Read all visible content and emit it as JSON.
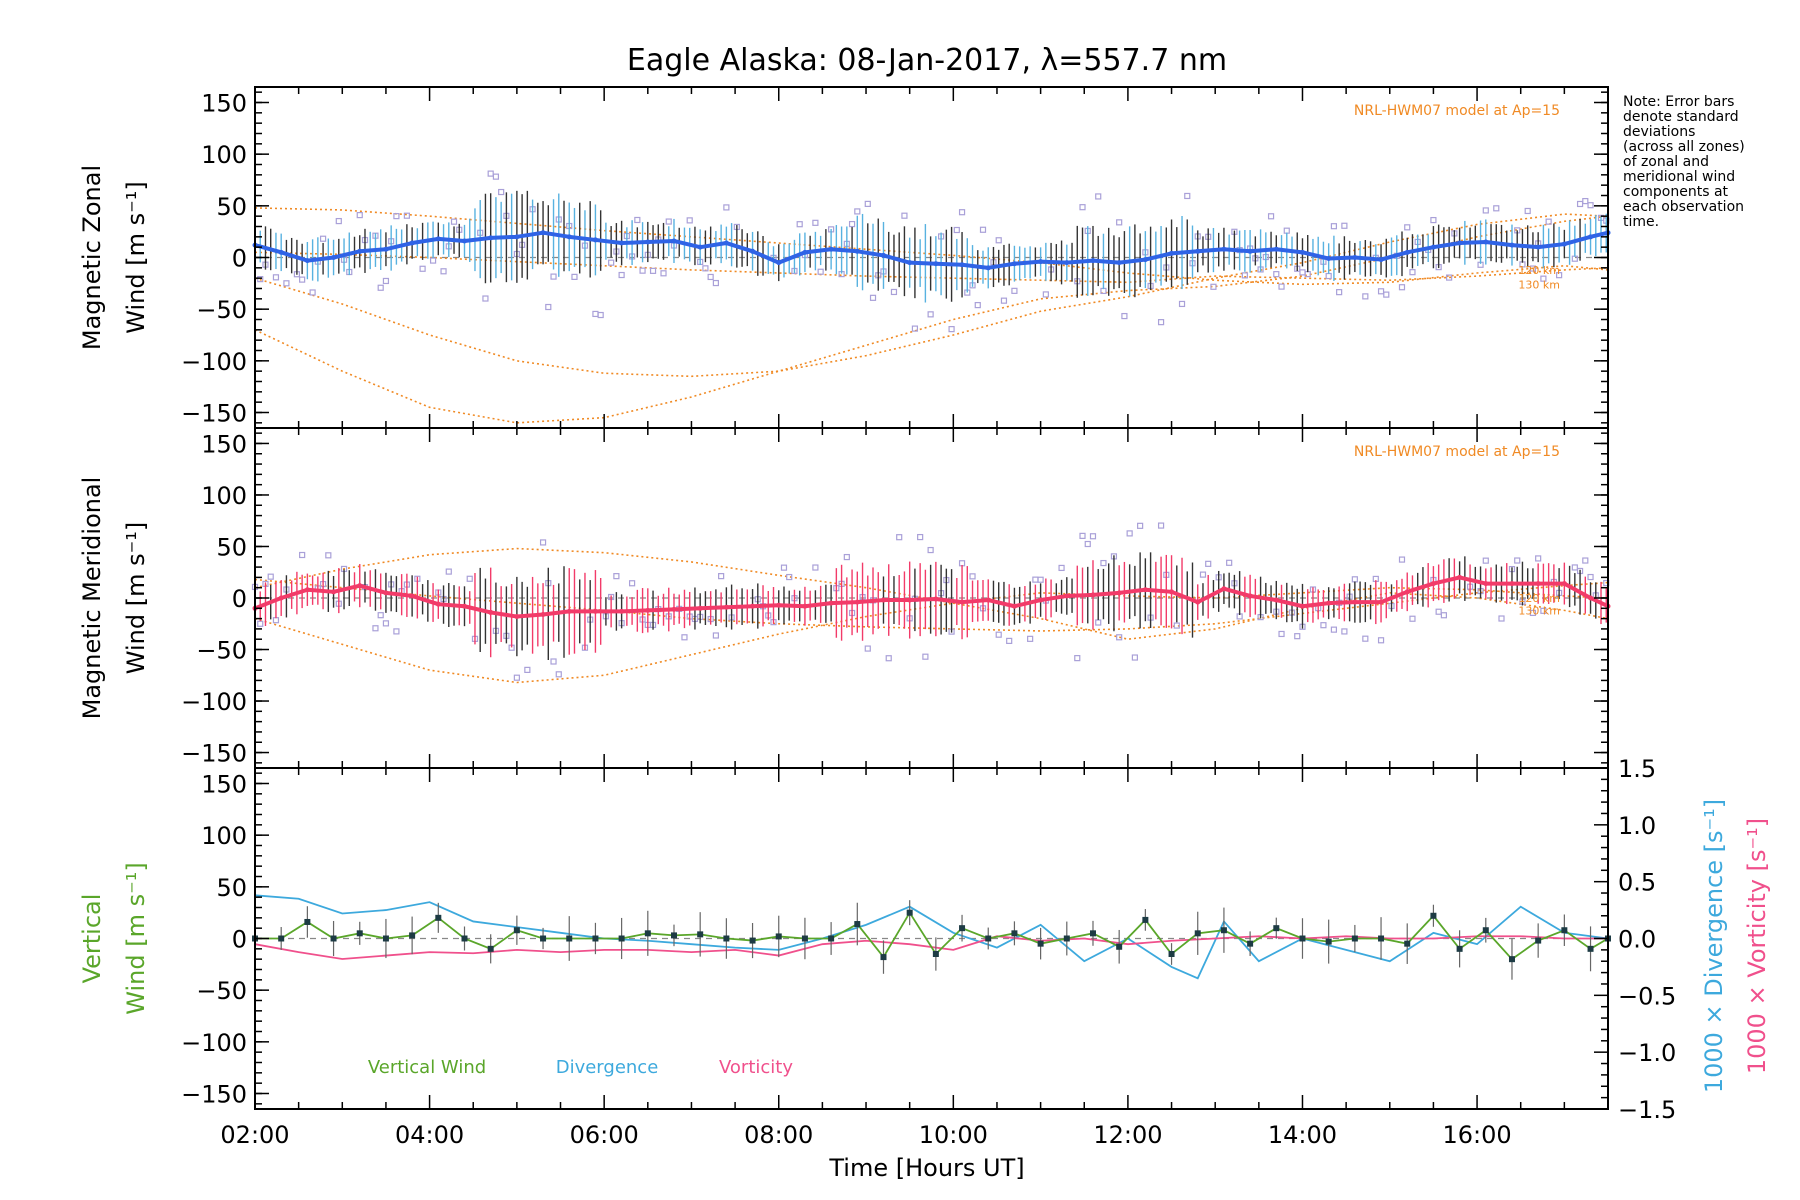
{
  "colors": {
    "zonal": "#2f63e6",
    "zonal_light": "#58b2e0",
    "meridional": "#f23b69",
    "vertical": "#5aa62a",
    "divergence": "#3da9dd",
    "vorticity": "#f0508c",
    "model": "#f08a24",
    "scatter": "#a9a0d8"
  },
  "chart_data": [
    {
      "type": "line",
      "panel": "zonal",
      "title": "Eagle Alaska: 08-Jan-2017, λ=557.7 nm",
      "ylabel_line1": "Magnetic Zonal",
      "ylabel_line2": "Wind [m s⁻¹]",
      "xlim": [
        2.0,
        17.5
      ],
      "ylim": [
        -165,
        165
      ],
      "yticks": [
        150,
        100,
        50,
        0,
        -50,
        -100,
        -150
      ],
      "model_label": "NRL-HWM07 model at Ap=15",
      "model_alt_labels": [
        "120 km",
        "130 km"
      ],
      "series": [
        {
          "x": [
            2.0,
            2.3,
            2.6,
            2.9,
            3.2,
            3.5,
            3.8,
            4.1,
            4.4,
            4.7,
            5.0,
            5.3,
            5.6,
            5.9,
            6.2,
            6.5,
            6.8,
            7.1,
            7.4,
            7.7,
            8.0,
            8.3,
            8.6,
            8.9,
            9.2,
            9.5,
            9.8,
            10.1,
            10.4,
            10.7,
            11.0,
            11.3,
            11.6,
            11.9,
            12.2,
            12.5,
            12.8,
            13.1,
            13.4,
            13.7,
            14.0,
            14.3,
            14.6,
            14.9,
            15.2,
            15.5,
            15.8,
            16.1,
            16.4,
            16.7,
            17.0,
            17.3,
            17.5
          ],
          "values": [
            12,
            5,
            -3,
            0,
            6,
            8,
            14,
            18,
            16,
            19,
            20,
            24,
            20,
            17,
            14,
            15,
            16,
            10,
            14,
            6,
            -5,
            5,
            8,
            6,
            2,
            -5,
            -6,
            -7,
            -10,
            -6,
            -4,
            -5,
            -3,
            -5,
            -2,
            4,
            6,
            8,
            6,
            8,
            5,
            -1,
            0,
            -2,
            5,
            10,
            14,
            15,
            12,
            10,
            13,
            20,
            24
          ]
        }
      ],
      "model_curves": [
        {
          "x": [
            2,
            3,
            4,
            5,
            6,
            7,
            8,
            9,
            10,
            11,
            12,
            13,
            14,
            15,
            16,
            17,
            17.5
          ],
          "values": [
            48,
            46,
            40,
            33,
            26,
            20,
            14,
            8,
            2,
            -5,
            -15,
            -22,
            -26,
            -24,
            -15,
            -8,
            -12
          ]
        },
        {
          "x": [
            2,
            3,
            4,
            5,
            6,
            7,
            8,
            9,
            10,
            11,
            12,
            13,
            14,
            15,
            16,
            17,
            17.5
          ],
          "values": [
            -20,
            -45,
            -75,
            -100,
            -112,
            -115,
            -110,
            -95,
            -75,
            -52,
            -38,
            -20,
            -5,
            15,
            32,
            42,
            40
          ]
        },
        {
          "x": [
            2,
            3,
            4,
            5,
            6,
            7,
            8,
            9,
            10,
            11,
            12,
            13,
            14,
            15,
            16,
            17,
            17.5
          ],
          "values": [
            -70,
            -110,
            -145,
            -160,
            -155,
            -135,
            -110,
            -85,
            -60,
            -40,
            -32,
            -28,
            -18,
            0,
            20,
            35,
            40
          ]
        },
        {
          "x": [
            2,
            3,
            4,
            5,
            6,
            7,
            8,
            9,
            10,
            11,
            12,
            13,
            14,
            15,
            16,
            17,
            17.5
          ],
          "values": [
            5,
            3,
            0,
            -4,
            -8,
            -12,
            -15,
            -18,
            -20,
            -22,
            -24,
            -18,
            -20,
            -22,
            -18,
            -12,
            -10
          ]
        }
      ]
    },
    {
      "type": "line",
      "panel": "meridional",
      "ylabel_line1": "Magnetic Meridional",
      "ylabel_line2": "Wind [m s⁻¹]",
      "xlim": [
        2.0,
        17.5
      ],
      "ylim": [
        -165,
        165
      ],
      "yticks": [
        150,
        100,
        50,
        0,
        -50,
        -100,
        -150
      ],
      "model_label": "NRL-HWM07 model at Ap=15",
      "model_alt_labels": [
        "120 km",
        "130 km"
      ],
      "series": [
        {
          "x": [
            2.0,
            2.3,
            2.6,
            2.9,
            3.2,
            3.5,
            3.8,
            4.1,
            4.4,
            4.7,
            5.0,
            5.3,
            5.6,
            5.9,
            6.2,
            6.5,
            6.8,
            7.1,
            7.4,
            7.7,
            8.0,
            8.3,
            8.6,
            8.9,
            9.2,
            9.5,
            9.8,
            10.1,
            10.4,
            10.7,
            11.0,
            11.3,
            11.6,
            11.9,
            12.2,
            12.5,
            12.8,
            13.1,
            13.4,
            13.7,
            14.0,
            14.3,
            14.6,
            14.9,
            15.2,
            15.5,
            15.8,
            16.1,
            16.4,
            16.7,
            17.0,
            17.3,
            17.5
          ],
          "values": [
            -10,
            0,
            8,
            6,
            12,
            5,
            2,
            -6,
            -8,
            -14,
            -18,
            -16,
            -13,
            -13,
            -13,
            -12,
            -11,
            -10,
            -9,
            -8,
            -7,
            -8,
            -5,
            -4,
            -2,
            -2,
            -1,
            -4,
            -2,
            -8,
            -2,
            2,
            3,
            5,
            8,
            6,
            -4,
            9,
            2,
            -2,
            -8,
            -5,
            -4,
            -4,
            6,
            14,
            20,
            14,
            14,
            14,
            14,
            0,
            -8
          ]
        }
      ],
      "model_curves": [
        {
          "x": [
            2,
            3,
            4,
            5,
            6,
            7,
            8,
            9,
            10,
            11,
            12,
            13,
            14,
            15,
            16,
            17,
            17.5
          ],
          "values": [
            10,
            28,
            42,
            48,
            44,
            35,
            22,
            10,
            -5,
            -20,
            -40,
            -30,
            -10,
            5,
            0,
            -12,
            -20
          ]
        },
        {
          "x": [
            2,
            3,
            4,
            5,
            6,
            7,
            8,
            9,
            10,
            11,
            12,
            13,
            14,
            15,
            16,
            17,
            17.5
          ],
          "values": [
            -20,
            -45,
            -70,
            -82,
            -75,
            -55,
            -35,
            -18,
            -5,
            5,
            2,
            0,
            5,
            10,
            8,
            2,
            0
          ]
        },
        {
          "x": [
            2,
            3,
            4,
            5,
            6,
            7,
            8,
            9,
            10,
            11,
            12,
            13,
            14,
            15,
            16,
            17,
            17.5
          ],
          "values": [
            18,
            10,
            2,
            -5,
            -12,
            -20,
            -25,
            -28,
            -30,
            -32,
            -30,
            -25,
            -15,
            -5,
            5,
            12,
            15
          ]
        }
      ]
    },
    {
      "type": "line",
      "panel": "vertical",
      "ylabel_line1": "Vertical",
      "ylabel_line2": "Wind [m s⁻¹]",
      "y2label_1": "1000 × Divergence [s⁻¹]",
      "y2label_2": "1000 × Vorticity [s⁻¹]",
      "xlabel": "Time [Hours UT]",
      "xlim": [
        2.0,
        17.5
      ],
      "ylim": [
        -165,
        165
      ],
      "y2lim": [
        -1.5,
        1.5
      ],
      "yticks": [
        150,
        100,
        50,
        0,
        -50,
        -100,
        -150
      ],
      "y2ticks": [
        "1.5",
        "1.0",
        "0.5",
        "0.0",
        "−0.5",
        "−1.0",
        "−1.5"
      ],
      "xticks": [
        "02:00",
        "04:00",
        "06:00",
        "08:00",
        "10:00",
        "12:00",
        "14:00",
        "16:00"
      ],
      "legend": [
        "Vertical Wind",
        "Divergence",
        "Vorticity"
      ],
      "series": [
        {
          "name": "Vertical Wind",
          "x": [
            2.0,
            2.3,
            2.6,
            2.9,
            3.2,
            3.5,
            3.8,
            4.1,
            4.4,
            4.7,
            5.0,
            5.3,
            5.6,
            5.9,
            6.2,
            6.5,
            6.8,
            7.1,
            7.4,
            7.7,
            8.0,
            8.3,
            8.6,
            8.9,
            9.2,
            9.5,
            9.8,
            10.1,
            10.4,
            10.7,
            11.0,
            11.3,
            11.6,
            11.9,
            12.2,
            12.5,
            12.8,
            13.1,
            13.4,
            13.7,
            14.0,
            14.3,
            14.6,
            14.9,
            15.2,
            15.5,
            15.8,
            16.1,
            16.4,
            16.7,
            17.0,
            17.3,
            17.5
          ],
          "values": [
            0,
            0,
            16,
            0,
            5,
            0,
            3,
            20,
            0,
            -10,
            8,
            0,
            0,
            0,
            0,
            5,
            3,
            4,
            0,
            -2,
            2,
            0,
            0,
            14,
            -18,
            25,
            -15,
            10,
            0,
            5,
            -5,
            0,
            5,
            -8,
            18,
            -15,
            5,
            8,
            -5,
            10,
            0,
            -3,
            0,
            0,
            -5,
            22,
            -10,
            8,
            -20,
            -2,
            8,
            -10,
            0
          ]
        },
        {
          "name": "Divergence",
          "x": [
            2.0,
            2.5,
            3.0,
            3.5,
            4.0,
            4.5,
            5.0,
            5.5,
            6.0,
            6.5,
            7.0,
            7.5,
            8.0,
            8.5,
            9.0,
            9.5,
            10.0,
            10.5,
            11.0,
            11.5,
            12.0,
            12.5,
            12.8,
            13.1,
            13.5,
            14.0,
            14.5,
            15.0,
            15.5,
            16.0,
            16.5,
            17.0,
            17.5
          ],
          "values": [
            0.38,
            0.35,
            0.22,
            0.25,
            0.32,
            0.15,
            0.1,
            0.05,
            0.0,
            -0.02,
            -0.05,
            -0.08,
            -0.1,
            0.0,
            0.12,
            0.28,
            0.05,
            -0.08,
            0.12,
            -0.2,
            0.0,
            -0.25,
            -0.35,
            0.15,
            -0.2,
            0.0,
            -0.1,
            -0.2,
            0.05,
            -0.05,
            0.28,
            0.05,
            0.0
          ]
        },
        {
          "name": "Vorticity",
          "x": [
            2.0,
            2.5,
            3.0,
            3.5,
            4.0,
            4.5,
            5.0,
            5.5,
            6.0,
            6.5,
            7.0,
            7.5,
            8.0,
            8.5,
            9.0,
            9.5,
            10.0,
            10.5,
            11.0,
            11.5,
            12.0,
            12.5,
            13.0,
            13.5,
            14.0,
            14.5,
            15.0,
            15.5,
            16.0,
            16.5,
            17.0,
            17.5
          ],
          "values": [
            -0.05,
            -0.12,
            -0.18,
            -0.15,
            -0.12,
            -0.13,
            -0.1,
            -0.12,
            -0.1,
            -0.1,
            -0.12,
            -0.1,
            -0.15,
            -0.05,
            -0.02,
            -0.05,
            -0.1,
            0.02,
            -0.02,
            0.0,
            -0.05,
            -0.02,
            0.0,
            0.02,
            0.0,
            0.02,
            0.0,
            0.0,
            0.02,
            0.02,
            0.0,
            0.0
          ]
        }
      ]
    }
  ],
  "note_lines": [
    "Note: Error bars",
    "denote standard",
    "deviations",
    "(across all zones)",
    "of zonal and",
    "meridional wind",
    "components at",
    "each observation",
    "time."
  ]
}
